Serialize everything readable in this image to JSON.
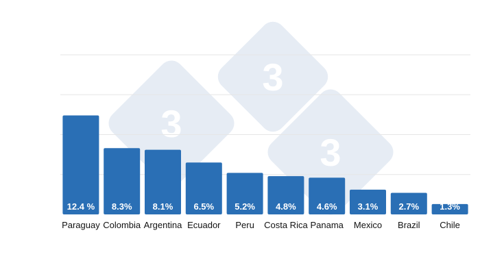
{
  "chart_data": {
    "type": "bar",
    "title": "",
    "xlabel": "",
    "ylabel": "",
    "categories": [
      "Paraguay",
      "Colombia",
      "Argentina",
      "Ecuador",
      "Peru",
      "Costa Rica",
      "Panama",
      "Mexico",
      "Brazil",
      "Chile"
    ],
    "values": [
      12.4,
      8.3,
      8.1,
      6.5,
      5.2,
      4.8,
      4.6,
      3.1,
      2.7,
      1.3
    ],
    "data_labels": [
      "12.4 %",
      "8.3%",
      "8.1%",
      "6.5%",
      "5.2%",
      "4.8%",
      "4.6%",
      "3.1%",
      "2.7%",
      "1.3%"
    ],
    "ylim": [
      0,
      20
    ],
    "gridlines": [
      5,
      10,
      15,
      20
    ],
    "grid": true,
    "legend": "none",
    "bar_color": "#2a6fb5"
  },
  "watermark": {
    "glyph": "3",
    "color": "#e6ecf4"
  }
}
